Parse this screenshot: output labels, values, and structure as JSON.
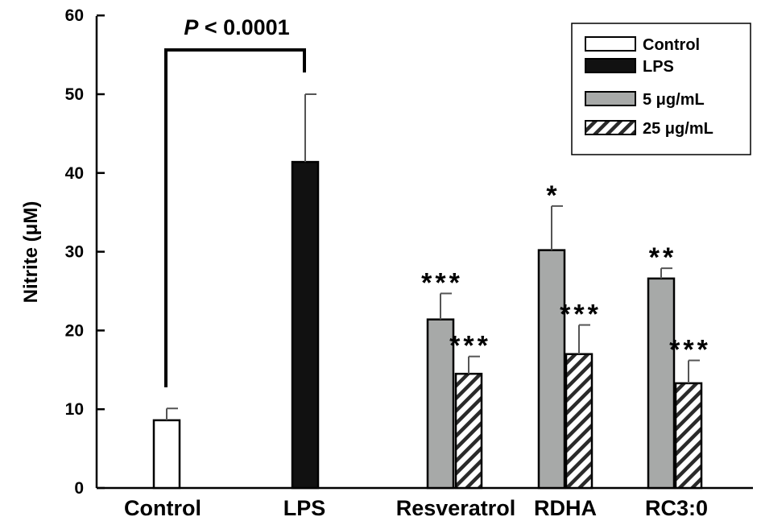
{
  "chart_data": {
    "type": "bar",
    "ylabel": "Nitrite  (μM)",
    "xlabel": "",
    "ylim": [
      0,
      60
    ],
    "yticks": [
      0,
      10,
      20,
      30,
      40,
      50,
      60
    ],
    "grid": false,
    "legend_position": "top-right",
    "categories": [
      "Control",
      "LPS",
      "Resveratrol",
      "RDHA",
      "RC3:0"
    ],
    "series": [
      {
        "name": "Control",
        "fill": "#ffffff",
        "pattern": "solid",
        "bars": [
          {
            "category": "Control",
            "value": 8.6,
            "error": 1.5,
            "stars": ""
          }
        ]
      },
      {
        "name": "LPS",
        "fill": "#111111",
        "pattern": "solid",
        "bars": [
          {
            "category": "LPS",
            "value": 41.4,
            "error": 8.6,
            "stars": ""
          }
        ]
      },
      {
        "name": "5 μg/mL",
        "fill": "#a7a9a8",
        "pattern": "solid",
        "bars": [
          {
            "category": "Resveratrol",
            "value": 21.4,
            "error": 3.3,
            "stars": "***"
          },
          {
            "category": "RDHA",
            "value": 30.2,
            "error": 5.6,
            "stars": "*"
          },
          {
            "category": "RC3:0",
            "value": 26.6,
            "error": 1.3,
            "stars": "**"
          }
        ]
      },
      {
        "name": "25 μg/mL",
        "fill": "#ffffff",
        "pattern": "hatch",
        "bars": [
          {
            "category": "Resveratrol",
            "value": 14.5,
            "error": 2.2,
            "stars": "***"
          },
          {
            "category": "RDHA",
            "value": 17.0,
            "error": 3.7,
            "stars": "***"
          },
          {
            "category": "RC3:0",
            "value": 13.3,
            "error": 2.9,
            "stars": "***"
          }
        ]
      }
    ],
    "annotation": {
      "text_italic": "P",
      "text": " < 0.0001",
      "between": [
        "Control",
        "LPS"
      ]
    }
  }
}
